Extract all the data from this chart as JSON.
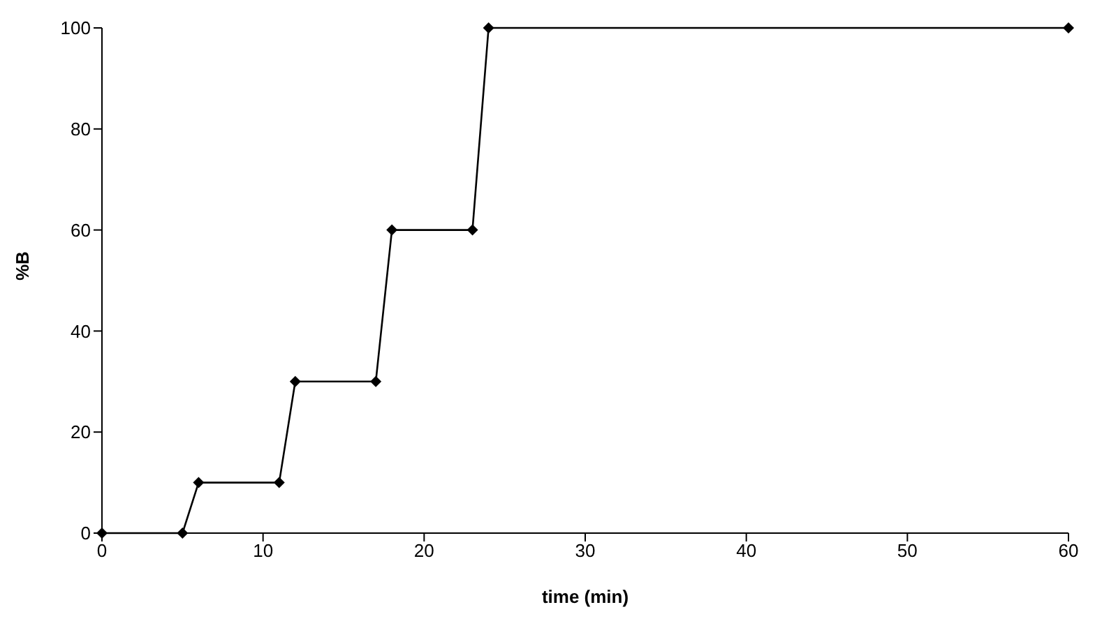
{
  "chart_data": {
    "type": "line",
    "xlabel": "time (min)",
    "ylabel": "%B",
    "x": [
      0,
      5,
      6,
      11,
      12,
      17,
      18,
      23,
      24,
      60
    ],
    "series": [
      {
        "color": "#000000",
        "values": [
          0,
          0,
          10,
          10,
          30,
          30,
          60,
          60,
          100,
          100
        ]
      }
    ],
    "xlim": [
      0,
      60
    ],
    "xticks": [
      0,
      10,
      20,
      30,
      40,
      50,
      60
    ],
    "ylim": [
      0,
      100
    ],
    "yticks": [
      0,
      20,
      40,
      60,
      80,
      100
    ],
    "grid": false,
    "legend": false,
    "marker": "diamond",
    "line_style": "solid"
  }
}
